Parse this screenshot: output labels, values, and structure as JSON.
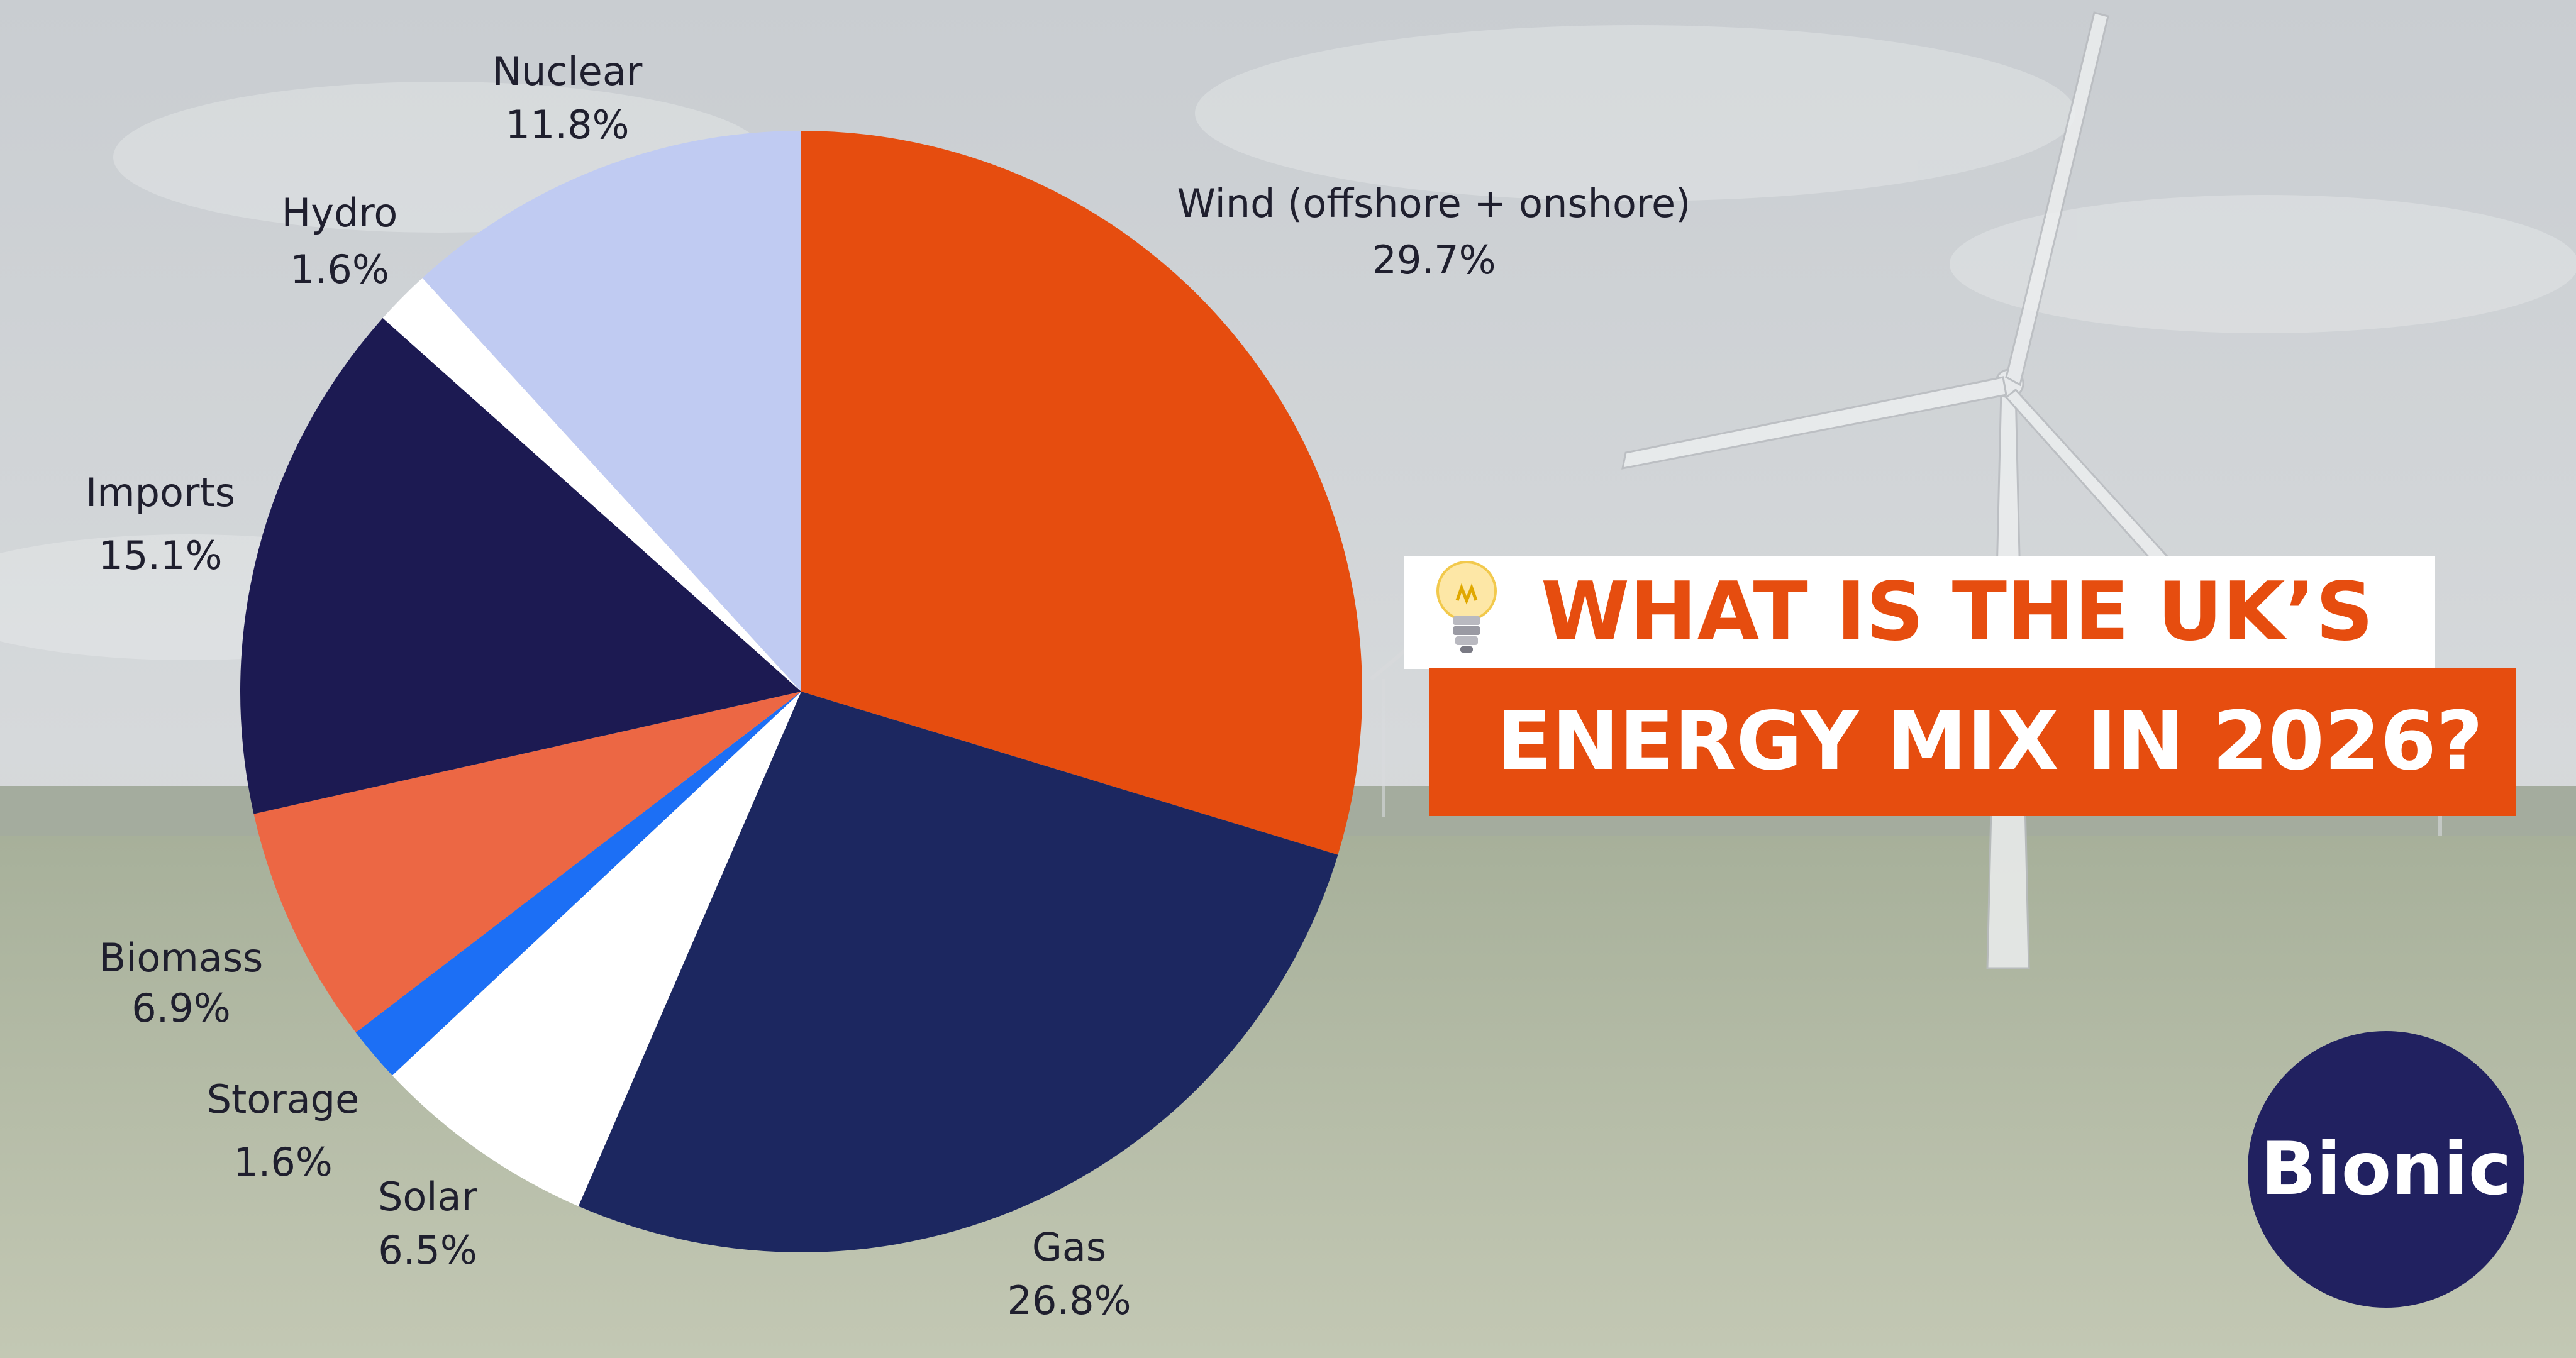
{
  "title": {
    "line1": "WHAT IS THE UK’S",
    "line2": "ENERGY MIX IN 2026?"
  },
  "brand": {
    "name": "Bionic"
  },
  "colors": {
    "wind": "#e64d0f",
    "gas": "#1c2760",
    "solar": "#ffffff",
    "storage": "#1c6ff5",
    "biomass": "#ec6744",
    "imports": "#1c1a52",
    "hydro": "#ffffff",
    "nuclear": "#c0cbf2",
    "title_accent": "#e64d0f",
    "logo_bg": "#212160"
  },
  "icons": [
    "lightbulb-icon"
  ],
  "chart_data": {
    "type": "pie",
    "start_angle_deg": 0,
    "direction": "clockwise",
    "slices": [
      {
        "key": "wind",
        "label": "Wind (offshore + onshore)",
        "value": 29.7,
        "display": "29.7%"
      },
      {
        "key": "gas",
        "label": "Gas",
        "value": 26.8,
        "display": "26.8%"
      },
      {
        "key": "solar",
        "label": "Solar",
        "value": 6.5,
        "display": "6.5%"
      },
      {
        "key": "storage",
        "label": "Storage",
        "value": 1.6,
        "display": "1.6%"
      },
      {
        "key": "biomass",
        "label": "Biomass",
        "value": 6.9,
        "display": "6.9%"
      },
      {
        "key": "imports",
        "label": "Imports",
        "value": 15.1,
        "display": "15.1%"
      },
      {
        "key": "hydro",
        "label": "Hydro",
        "value": 1.6,
        "display": "1.6%"
      },
      {
        "key": "nuclear",
        "label": "Nuclear",
        "value": 11.8,
        "display": "11.8%"
      }
    ]
  }
}
